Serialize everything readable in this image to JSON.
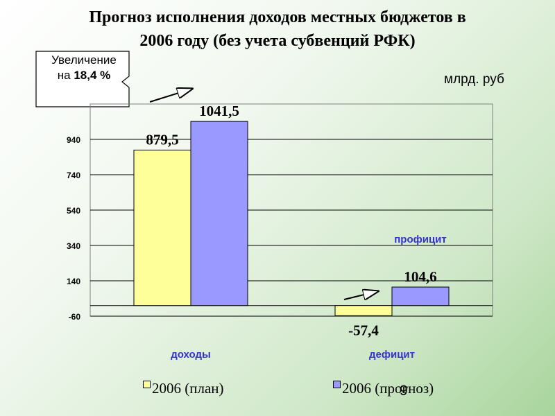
{
  "title": {
    "line1": "Прогноз исполнения доходов местных бюджетов в",
    "line2": "2006 году (без учета субвенций РФК)"
  },
  "callout": {
    "line1": "Увеличение",
    "line2_prefix": "на ",
    "line2_value": "18,4 %"
  },
  "unit_label": "млрд. руб",
  "page_number": "9",
  "chart_data": {
    "type": "bar",
    "categories": [
      "доходы",
      "дефицит"
    ],
    "series": [
      {
        "name": "2006 (план)",
        "values": [
          879.5,
          -57.4
        ],
        "labels": [
          "879,5",
          "-57,4"
        ],
        "color": "#ffff99"
      },
      {
        "name": "2006 (прогноз)",
        "values": [
          1041.5,
          104.6
        ],
        "labels": [
          "1041,5",
          "104,6"
        ],
        "color": "#9999ff"
      }
    ],
    "ylim": [
      -60,
      1140
    ],
    "yticks": [
      -60,
      140,
      340,
      540,
      740,
      940
    ],
    "ytick_labels": [
      "-60",
      "140",
      "340",
      "540",
      "740",
      "940"
    ],
    "grid": true,
    "annotations": [
      "профицит"
    ],
    "category_label_color": "#3333cc",
    "legend_position": "bottom"
  }
}
